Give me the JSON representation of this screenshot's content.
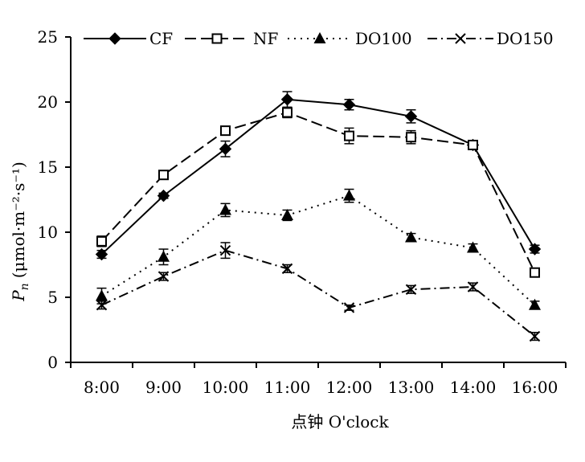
{
  "chart_data": {
    "type": "line",
    "categories": [
      "8:00",
      "9:00",
      "10:00",
      "11:00",
      "12:00",
      "13:00",
      "14:00",
      "16:00"
    ],
    "xlabel": "点钟 O'clock",
    "ylabel_symbol": "P",
    "ylabel_subscript": "n",
    "ylabel_units": "(μmol·m⁻²·s⁻¹)",
    "ylim": [
      0,
      25
    ],
    "yticks": [
      0,
      5,
      10,
      15,
      20,
      25
    ],
    "grid": false,
    "legend": "top",
    "series": [
      {
        "name": "CF",
        "marker": "diamond",
        "line": "solid",
        "values": [
          8.3,
          12.8,
          16.4,
          20.2,
          19.8,
          18.9,
          16.7,
          8.7
        ],
        "errors": [
          0.3,
          0.2,
          0.6,
          0.6,
          0.4,
          0.5,
          0.3,
          0.3
        ]
      },
      {
        "name": "NF",
        "marker": "square-open",
        "line": "dashed",
        "values": [
          9.3,
          14.4,
          17.8,
          19.2,
          17.4,
          17.3,
          16.7,
          6.9
        ],
        "errors": [
          0.4,
          0.3,
          0.2,
          0.4,
          0.6,
          0.5,
          0.3,
          0.3
        ]
      },
      {
        "name": "DO100",
        "marker": "triangle",
        "line": "dotted",
        "values": [
          5.1,
          8.1,
          11.7,
          11.3,
          12.8,
          9.6,
          8.8,
          4.4
        ],
        "errors": [
          0.6,
          0.6,
          0.5,
          0.4,
          0.5,
          0.3,
          0.3,
          0.3
        ]
      },
      {
        "name": "DO150",
        "marker": "x",
        "line": "dashdot",
        "values": [
          4.4,
          6.6,
          8.6,
          7.2,
          4.2,
          5.6,
          5.8,
          2.0
        ],
        "errors": [
          0.3,
          0.3,
          0.6,
          0.3,
          0.2,
          0.3,
          0.3,
          0.3
        ]
      }
    ]
  }
}
